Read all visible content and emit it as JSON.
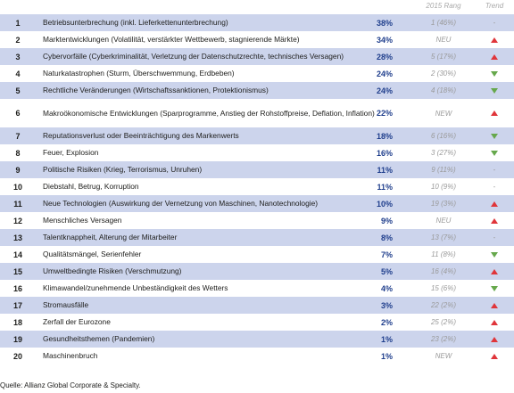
{
  "header": {
    "prev_rank": "2015 Rang",
    "trend": "Trend"
  },
  "colors": {
    "shade": "#ccd4ec",
    "percent": "#1f3e8c",
    "trend_up": "#e0353a",
    "trend_down": "#66a84c"
  },
  "rows": [
    {
      "rank": "1",
      "risk": "Betriebsunterbrechung (inkl. Lieferkettenunterbrechung)",
      "pct": "38%",
      "prev": "1 (46%)",
      "trend": "none"
    },
    {
      "rank": "2",
      "risk": "Marktentwicklungen (Volatilität, verstärkter Wettbewerb, stagnierende Märkte)",
      "pct": "34%",
      "prev": "NEU",
      "trend": "up"
    },
    {
      "rank": "3",
      "risk": "Cybervorfälle (Cyberkriminalität, Verletzung der Datenschutzrechte, technisches Versagen)",
      "pct": "28%",
      "prev": "5 (17%)",
      "trend": "up"
    },
    {
      "rank": "4",
      "risk": "Naturkatastrophen (Sturm, Überschwemmung, Erdbeben)",
      "pct": "24%",
      "prev": "2 (30%)",
      "trend": "down"
    },
    {
      "rank": "5",
      "risk": "Rechtliche Veränderungen (Wirtschaftssanktionen, Protektionismus)",
      "pct": "24%",
      "prev": "4 (18%)",
      "trend": "down"
    },
    {
      "rank": "6",
      "risk": "Makroökonomische Entwicklungen (Sparprogramme, Anstieg der Rohstoffpreise, Deflation, Inflation)",
      "pct": "22%",
      "prev": "NEW",
      "trend": "up"
    },
    {
      "rank": "7",
      "risk": "Reputationsverlust oder Beeinträchtigung des Markenwerts",
      "pct": "18%",
      "prev": "6 (16%)",
      "trend": "down"
    },
    {
      "rank": "8",
      "risk": "Feuer, Explosion",
      "pct": "16%",
      "prev": "3 (27%)",
      "trend": "down"
    },
    {
      "rank": "9",
      "risk": "Politische Risiken (Krieg, Terrorismus, Unruhen)",
      "pct": "11%",
      "prev": "9 (11%)",
      "trend": "none"
    },
    {
      "rank": "10",
      "risk": "Diebstahl, Betrug, Korruption",
      "pct": "11%",
      "prev": "10 (9%)",
      "trend": "none"
    },
    {
      "rank": "11",
      "risk": "Neue Technologien (Auswirkung der Vernetzung von Maschinen, Nanotechnologie)",
      "pct": "10%",
      "prev": "19 (3%)",
      "trend": "up"
    },
    {
      "rank": "12",
      "risk": "Menschliches Versagen",
      "pct": "9%",
      "prev": "NEU",
      "trend": "up"
    },
    {
      "rank": "13",
      "risk": "Talentknappheit, Alterung der Mitarbeiter",
      "pct": "8%",
      "prev": "13 (7%)",
      "trend": "none"
    },
    {
      "rank": "14",
      "risk": "Qualitätsmängel, Serienfehler",
      "pct": "7%",
      "prev": "11 (8%)",
      "trend": "down"
    },
    {
      "rank": "15",
      "risk": "Umweltbedingte Risiken (Verschmutzung)",
      "pct": "5%",
      "prev": "16 (4%)",
      "trend": "up"
    },
    {
      "rank": "16",
      "risk": "Klimawandel/zunehmende Unbeständigkeit des Wetters",
      "pct": "4%",
      "prev": "15 (6%)",
      "trend": "down"
    },
    {
      "rank": "17",
      "risk": "Stromausfälle",
      "pct": "3%",
      "prev": "22 (2%)",
      "trend": "up"
    },
    {
      "rank": "18",
      "risk": "Zerfall der Eurozone",
      "pct": "2%",
      "prev": "25 (2%)",
      "trend": "up"
    },
    {
      "rank": "19",
      "risk": "Gesundheitsthemen (Pandemien)",
      "pct": "1%",
      "prev": "23 (2%)",
      "trend": "up"
    },
    {
      "rank": "20",
      "risk": "Maschinenbruch",
      "pct": "1%",
      "prev": "NEW",
      "trend": "up"
    }
  ],
  "source": "Quelle: Allianz Global Corporate & Specialty."
}
